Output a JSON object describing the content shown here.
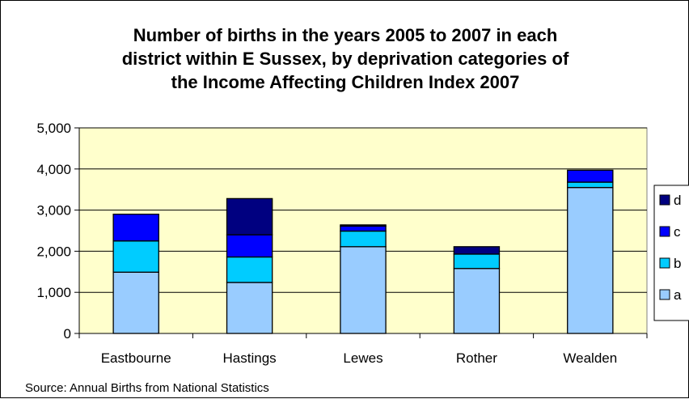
{
  "chart_data": {
    "type": "bar",
    "stacked": true,
    "title_lines": [
      "Number of births in the years 2005 to 2007 in each",
      "district within E Sussex, by deprivation categories of",
      "the Income Affecting Children Index 2007"
    ],
    "categories": [
      "Eastbourne",
      "Hastings",
      "Lewes",
      "Rother",
      "Wealden"
    ],
    "series": [
      {
        "name": "a",
        "color": "#99CCFF",
        "values": [
          1490,
          1240,
          2110,
          1580,
          3550
        ]
      },
      {
        "name": "b",
        "color": "#00CCFF",
        "values": [
          760,
          620,
          380,
          350,
          130
        ]
      },
      {
        "name": "c",
        "color": "#0000FF",
        "values": [
          650,
          540,
          120,
          0,
          290
        ]
      },
      {
        "name": "d",
        "color": "#000080",
        "values": [
          0,
          880,
          30,
          180,
          0
        ]
      }
    ],
    "y_ticks": [
      "0",
      "1,000",
      "2,000",
      "3,000",
      "4,000",
      "5,000"
    ],
    "ylim": [
      0,
      5000
    ],
    "grid": true,
    "plot_background": "#FFFFCC",
    "legend_position": "right",
    "source": "Source: Annual Births from National Statistics"
  }
}
